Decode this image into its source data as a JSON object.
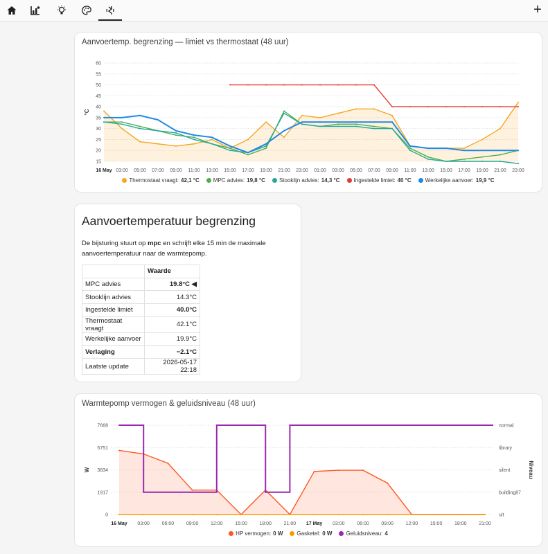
{
  "tabs": [
    {
      "icon": "home-icon"
    },
    {
      "icon": "chart-icon"
    },
    {
      "icon": "lightbulb-icon"
    },
    {
      "icon": "palette-icon"
    },
    {
      "icon": "sound-icon",
      "active": true
    }
  ],
  "add_label": "+",
  "chart1": {
    "title": "Aanvoertemp. begrenzing — limiet vs thermostaat (48 uur)",
    "ylabel": "°C",
    "yticks": [
      "60",
      "55",
      "50",
      "45",
      "40",
      "35",
      "30",
      "25",
      "20",
      "15"
    ],
    "xticks": [
      "16 May",
      "03:00",
      "05:00",
      "07:00",
      "09:00",
      "11:00",
      "13:00",
      "15:00",
      "17:00",
      "19:00",
      "21:00",
      "23:00",
      "01:00",
      "03:00",
      "05:00",
      "07:00",
      "09:00",
      "11:00",
      "13:00",
      "15:00",
      "17:00",
      "19:00",
      "21:00",
      "23:00"
    ],
    "legend": [
      {
        "name": "Thermostaat vraagt:",
        "value": "42,1 °C",
        "color": "#f5a623"
      },
      {
        "name": "MPC advies:",
        "value": "19,8 °C",
        "color": "#4caf50"
      },
      {
        "name": "Stooklijn advies:",
        "value": "14,3 °C",
        "color": "#26a69a"
      },
      {
        "name": "Ingestelde limiet:",
        "value": "40 °C",
        "color": "#e53935"
      },
      {
        "name": "Werkelijke aanvoer:",
        "value": "19,9 °C",
        "color": "#1e88e5"
      }
    ]
  },
  "info": {
    "title": "Aanvoertemperatuur begrenzing",
    "desc_pre": "De bijsturing stuurt op ",
    "desc_bold": "mpc",
    "desc_post": " en schrijft elke 15 min de maximale aanvoertemperatuur naar de warmtepomp.",
    "col_header": "Waarde",
    "rows": [
      {
        "label": "MPC advies",
        "value": "19.8°C ◀"
      },
      {
        "label": "Stooklijn advies",
        "value": "14.3°C"
      },
      {
        "label": "Ingestelde limiet",
        "value": "40.0°C"
      },
      {
        "label": "Thermostaat vraagt",
        "value": "42.1°C"
      },
      {
        "label": "Werkelijke aanvoer",
        "value": "19.9°C"
      },
      {
        "label": "Verlaging",
        "value": "−2.1°C"
      },
      {
        "label": "Laatste update",
        "value": "2026-05-17 22:18"
      }
    ]
  },
  "chart2": {
    "title": "Warmtepomp vermogen & geluidsniveau (48 uur)",
    "ylabel_left": "W",
    "ylabel_right": "Niveau",
    "yticks_left": [
      "7668",
      "5751",
      "3834",
      "1917",
      "0"
    ],
    "yticks_right": [
      "normal",
      "library",
      "silent",
      "building87",
      "uit"
    ],
    "xticks": [
      "16 May",
      "03:00",
      "06:00",
      "09:00",
      "12:00",
      "15:00",
      "18:00",
      "21:00",
      "17 May",
      "03:00",
      "06:00",
      "09:00",
      "12:00",
      "15:00",
      "18:00",
      "21:00"
    ],
    "legend": [
      {
        "name": "HP vermogen:",
        "value": "0 W",
        "color": "#ff5722"
      },
      {
        "name": "Gasketel:",
        "value": "0 W",
        "color": "#ff9800"
      },
      {
        "name": "Geluidsniveau:",
        "value": "4",
        "color": "#9c27b0"
      }
    ]
  },
  "chart_data": [
    {
      "type": "line",
      "title": "Aanvoertemp. begrenzing — limiet vs thermostaat (48 uur)",
      "ylabel": "°C",
      "ylim": [
        15,
        60
      ],
      "x": [
        "16 May 01:00",
        "03:00",
        "05:00",
        "07:00",
        "09:00",
        "11:00",
        "13:00",
        "15:00",
        "17:00",
        "19:00",
        "21:00",
        "23:00",
        "17 May 01:00",
        "03:00",
        "05:00",
        "07:00",
        "09:00",
        "11:00",
        "13:00",
        "15:00",
        "17:00",
        "19:00",
        "21:00",
        "23:00"
      ],
      "series": [
        {
          "name": "Thermostaat vraagt",
          "values": [
            38,
            30,
            24,
            23,
            22,
            23,
            25,
            21,
            25,
            33,
            26,
            36,
            35,
            37,
            39,
            39,
            36,
            22,
            21,
            21,
            21,
            25,
            30,
            42
          ]
        },
        {
          "name": "MPC advies",
          "values": [
            33,
            33,
            31,
            29,
            27,
            26,
            23,
            21,
            18,
            21,
            38,
            32,
            31,
            32,
            32,
            31,
            30,
            21,
            17,
            15,
            16,
            17,
            18,
            20
          ]
        },
        {
          "name": "Stooklijn advies",
          "values": [
            33,
            32,
            30,
            29,
            28,
            25,
            23,
            20,
            19,
            22,
            37,
            32,
            31,
            31,
            31,
            30,
            30,
            20,
            16,
            15,
            15,
            15,
            15,
            14
          ]
        },
        {
          "name": "Ingestelde limiet",
          "values": [
            null,
            null,
            null,
            null,
            null,
            null,
            null,
            50,
            50,
            50,
            50,
            50,
            50,
            50,
            50,
            50,
            40,
            40,
            40,
            40,
            40,
            40,
            40,
            40
          ]
        },
        {
          "name": "Werkelijke aanvoer",
          "values": [
            35,
            35,
            36,
            34,
            29,
            27,
            26,
            22,
            19,
            23,
            29,
            33,
            33,
            33,
            33,
            33,
            33,
            22,
            21,
            21,
            20,
            20,
            20,
            20
          ]
        }
      ]
    },
    {
      "type": "line",
      "title": "Warmtepomp vermogen & geluidsniveau (48 uur)",
      "ylabel": "W",
      "ylim": [
        0,
        7668
      ],
      "x": [
        "16 May",
        "03:00",
        "06:00",
        "09:00",
        "12:00",
        "15:00",
        "18:00",
        "21:00",
        "17 May",
        "03:00",
        "06:00",
        "09:00",
        "12:00",
        "15:00",
        "18:00",
        "21:00"
      ],
      "series": [
        {
          "name": "HP vermogen",
          "values": [
            5500,
            5200,
            4400,
            2100,
            2100,
            0,
            2100,
            0,
            3700,
            3800,
            3800,
            2700,
            0,
            0,
            0,
            0
          ]
        },
        {
          "name": "Gasketel",
          "values": [
            0,
            0,
            0,
            0,
            0,
            0,
            0,
            0,
            0,
            0,
            0,
            0,
            0,
            0,
            0,
            0
          ]
        },
        {
          "name": "Geluidsniveau",
          "values": [
            4,
            1,
            1,
            1,
            4,
            4,
            1,
            4,
            4,
            4,
            4,
            4,
            4,
            4,
            4,
            4
          ]
        }
      ]
    }
  ]
}
